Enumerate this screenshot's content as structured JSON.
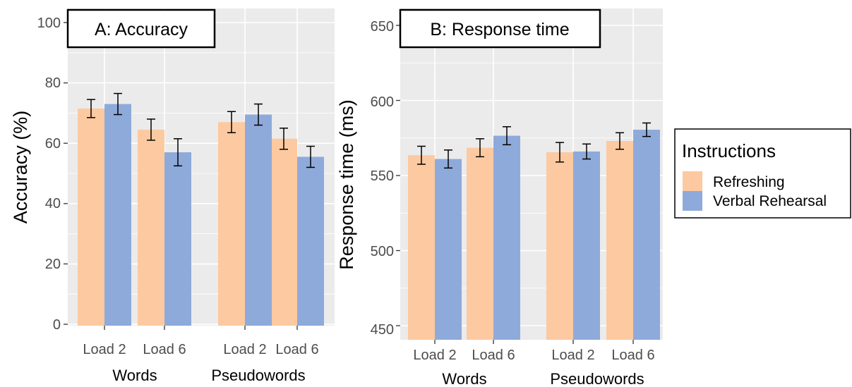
{
  "colors": {
    "panel_background": "#ebebeb",
    "gridline": "#ffffff",
    "refreshing": "#fdc9a0",
    "verbal_rehearsal": "#8eaadb",
    "error_bar": "#000000",
    "tick_label": "#4d4d4d"
  },
  "legend": {
    "title": "Instructions",
    "placement": "right",
    "items": [
      {
        "label": "Refreshing",
        "color": "#fdc9a0"
      },
      {
        "label": "Verbal Rehearsal",
        "color": "#8eaadb"
      }
    ]
  },
  "chart_data": [
    {
      "type": "bar",
      "panel_label": "A: Accuracy",
      "ylabel": "Accuracy (%)",
      "xlabel": "",
      "ylim": [
        0,
        100
      ],
      "yticks": [
        0,
        20,
        40,
        60,
        80,
        100
      ],
      "grid": true,
      "groups": [
        {
          "label": "Words",
          "categories": [
            "Load 2",
            "Load 6"
          ]
        },
        {
          "label": "Pseudowords",
          "categories": [
            "Load 2",
            "Load 6"
          ]
        }
      ],
      "series": [
        {
          "name": "Refreshing",
          "values": [
            71.5,
            64.5,
            67.0,
            61.5
          ],
          "error_low": [
            68.5,
            61.0,
            63.5,
            58.0
          ],
          "error_high": [
            74.5,
            68.0,
            70.5,
            65.0
          ]
        },
        {
          "name": "Verbal Rehearsal",
          "values": [
            73.0,
            57.0,
            69.5,
            55.5
          ],
          "error_low": [
            69.5,
            52.5,
            66.0,
            52.0
          ],
          "error_high": [
            76.5,
            61.5,
            73.0,
            59.0
          ]
        }
      ]
    },
    {
      "type": "bar",
      "panel_label": "B: Response time",
      "ylabel": "Response time (ms)",
      "xlabel": "",
      "ylim": [
        440,
        650
      ],
      "yticks": [
        450,
        500,
        550,
        600,
        650
      ],
      "grid": true,
      "groups": [
        {
          "label": "Words",
          "categories": [
            "Load 2",
            "Load 6"
          ]
        },
        {
          "label": "Pseudowords",
          "categories": [
            "Load 2",
            "Load 6"
          ]
        }
      ],
      "series": [
        {
          "name": "Refreshing",
          "values": [
            563.5,
            568.5,
            565.5,
            573.0
          ],
          "error_low": [
            557.5,
            562.5,
            559.0,
            567.5
          ],
          "error_high": [
            569.5,
            574.5,
            572.0,
            578.5
          ]
        },
        {
          "name": "Verbal Rehearsal",
          "values": [
            561.0,
            576.5,
            566.0,
            580.5
          ],
          "error_low": [
            555.0,
            570.5,
            561.0,
            576.0
          ],
          "error_high": [
            567.0,
            582.5,
            571.0,
            585.0
          ]
        }
      ]
    }
  ]
}
